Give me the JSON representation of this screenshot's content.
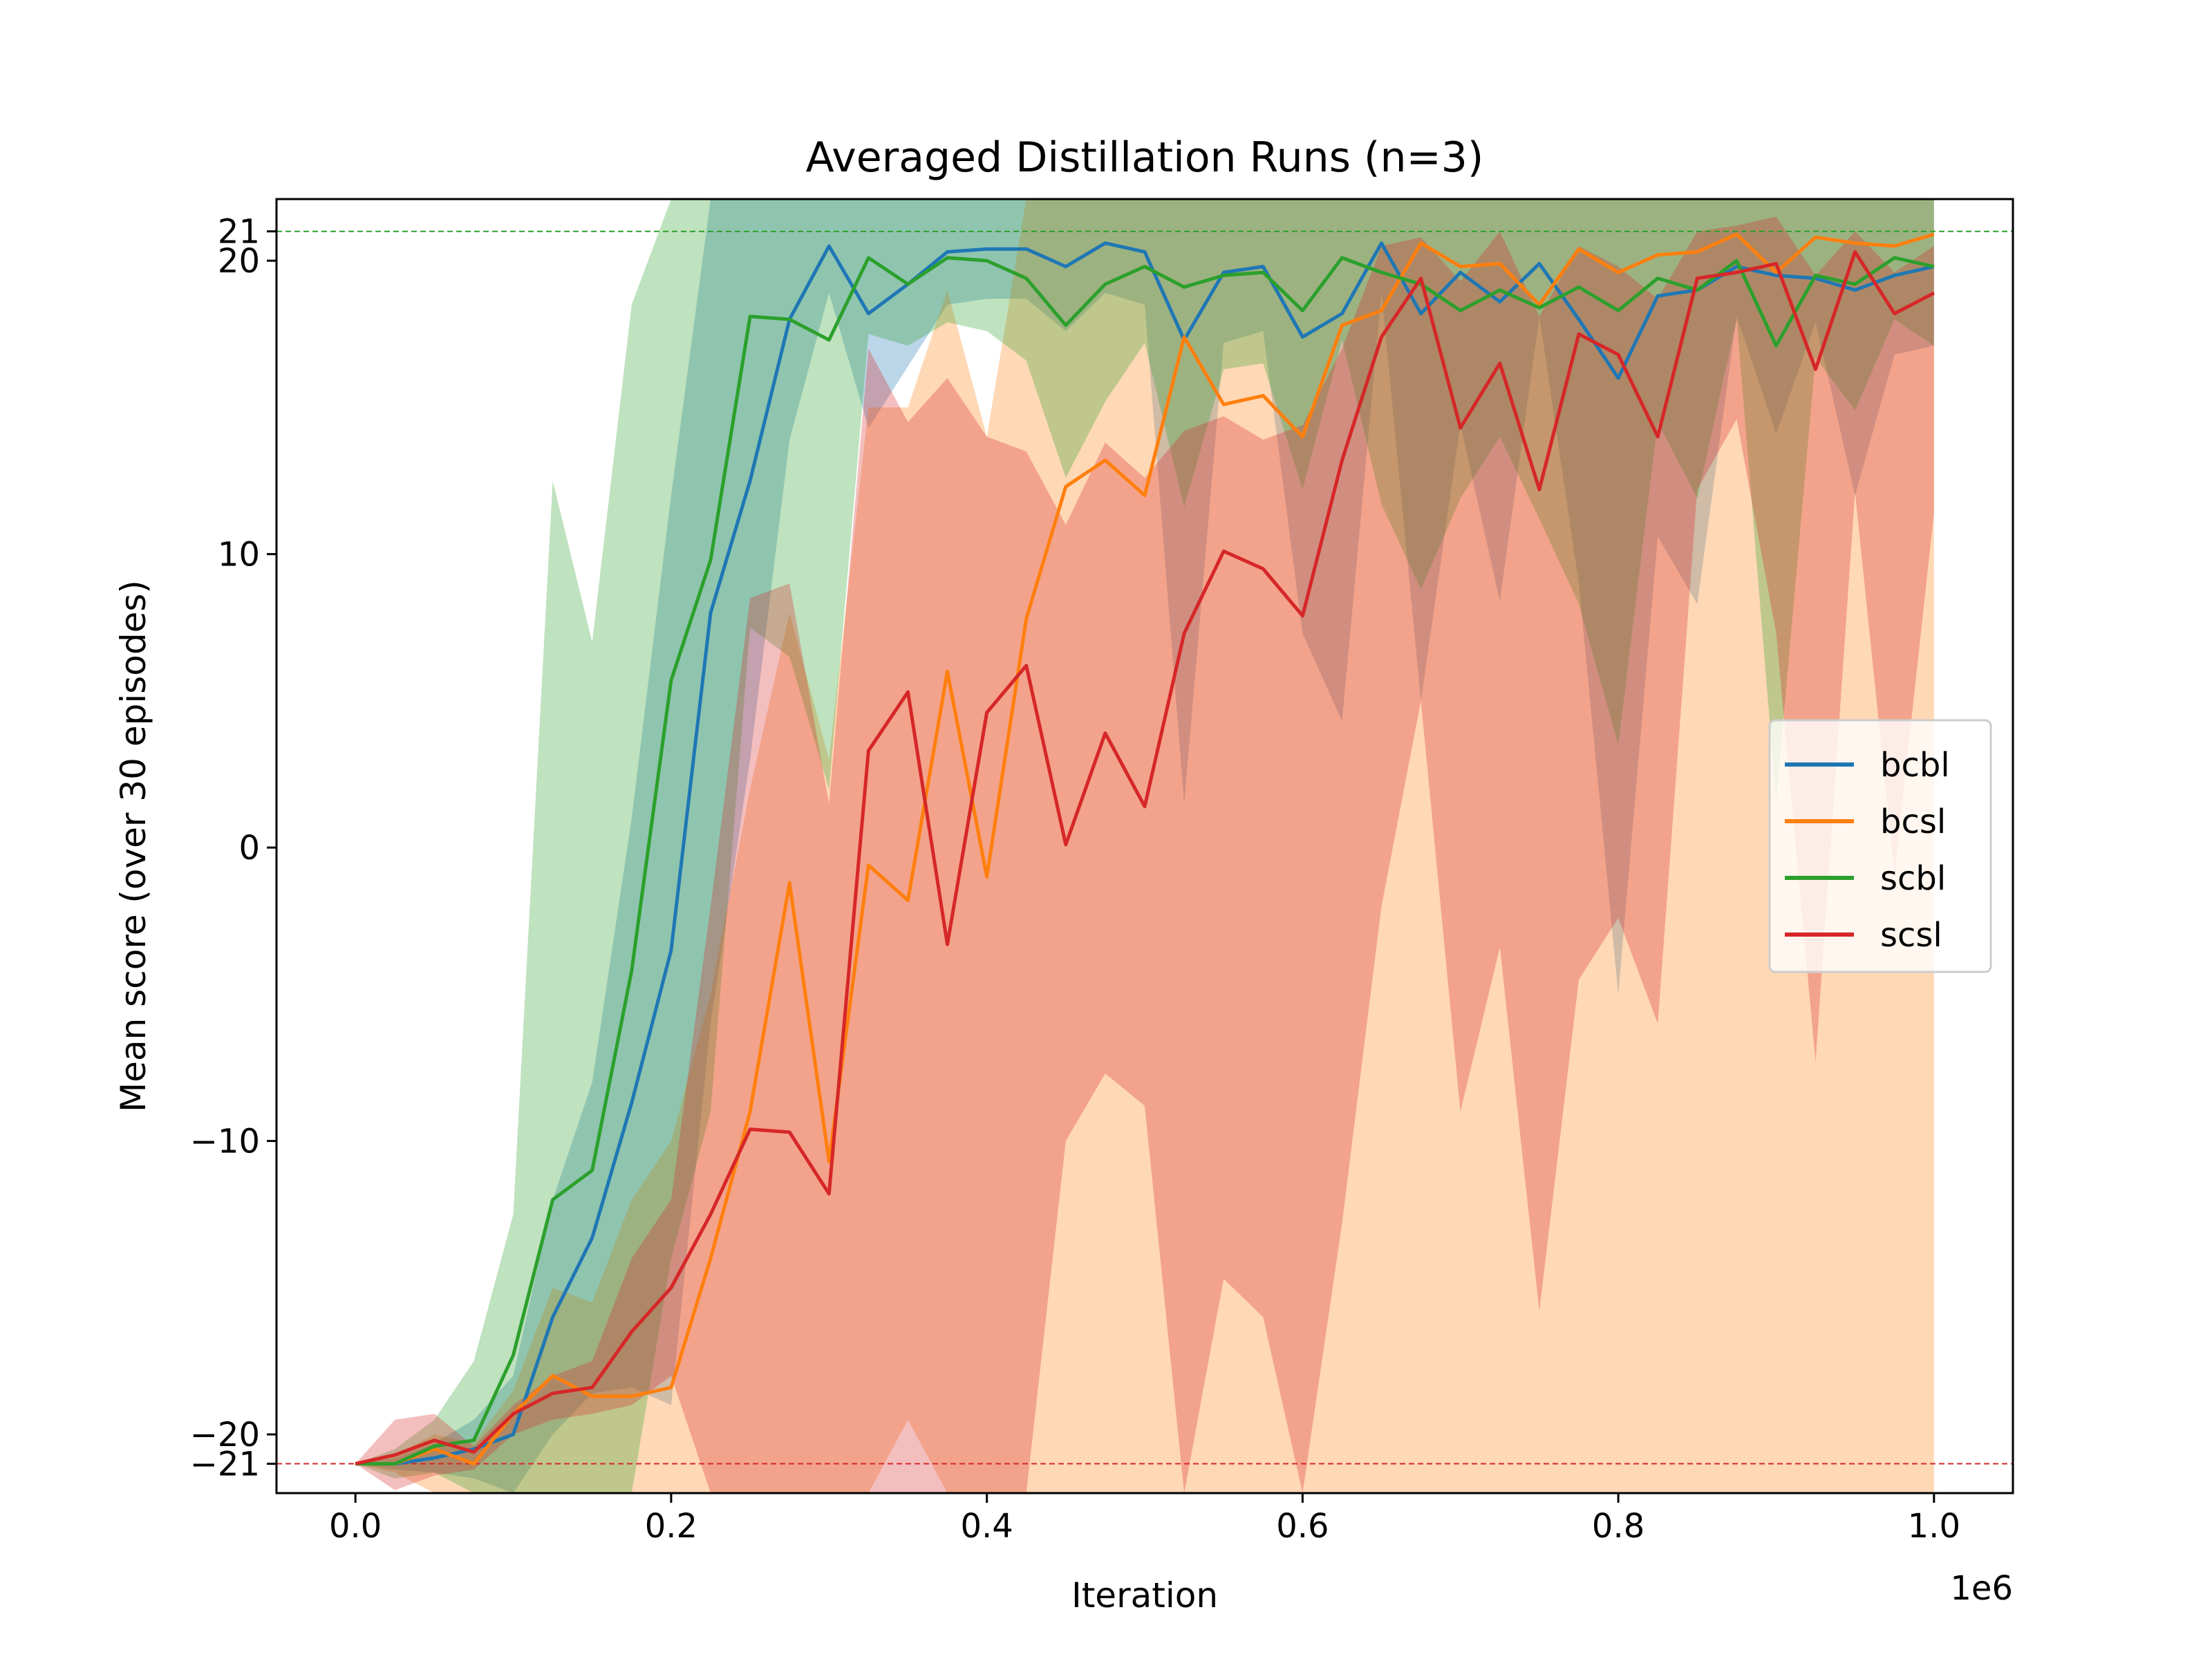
{
  "chart_data": {
    "type": "line",
    "title": "Averaged Distillation Runs (n=3)",
    "xlabel": "Iteration",
    "ylabel": "Mean score (over 30 episodes)",
    "x_offset_label": "1e6",
    "xlim": [
      -0.05,
      1.05
    ],
    "ylim": [
      -22,
      22.1
    ],
    "x_ticks": [
      0.0,
      0.2,
      0.4,
      0.6,
      0.8,
      1.0
    ],
    "x_tick_labels": [
      "0.0",
      "0.2",
      "0.4",
      "0.6",
      "0.8",
      "1.0"
    ],
    "y_ticks": [
      -21,
      -20,
      -10,
      0,
      10,
      20,
      21
    ],
    "y_tick_labels": [
      "−21",
      "−20",
      "−10",
      "0",
      "10",
      "20",
      "21"
    ],
    "legend_position": "center-right",
    "grid": false,
    "reference_lines": [
      {
        "y": 21,
        "color": "#2ca02c",
        "style": "dashed"
      },
      {
        "y": -21,
        "color": "#d62728",
        "style": "dashed"
      }
    ],
    "x": [
      0,
      0.025,
      0.05,
      0.075,
      0.1,
      0.125,
      0.15,
      0.175,
      0.2,
      0.225,
      0.25,
      0.275,
      0.3,
      0.325,
      0.35,
      0.375,
      0.4,
      0.425,
      0.45,
      0.475,
      0.5,
      0.525,
      0.55,
      0.575,
      0.6,
      0.625,
      0.65,
      0.675,
      0.7,
      0.725,
      0.75,
      0.775,
      0.8,
      0.825,
      0.85,
      0.875,
      0.9,
      0.925,
      0.95,
      0.975,
      1.0
    ],
    "series": [
      {
        "name": "bcbl",
        "color": "#1f77b4",
        "mean": [
          -21,
          -21,
          -20.8,
          -20.5,
          -20,
          -16,
          -13.3,
          -8.7,
          -3.5,
          8,
          12.5,
          18,
          20.5,
          18.2,
          19.2,
          20.3,
          20.4,
          20.4,
          19.8,
          20.6,
          20.3,
          17.3,
          19.6,
          19.8,
          17.4,
          18.2,
          20.6,
          18.2,
          19.6,
          18.6,
          19.9,
          18,
          16,
          18.8,
          19,
          19.8,
          19.5,
          19.4,
          19,
          19.5,
          19.8
        ],
        "upper": [
          -21,
          -20.8,
          -20.3,
          -19.5,
          -18,
          -12,
          -8,
          1,
          12,
          22.1,
          22.1,
          22.1,
          22.1,
          22.1,
          22.1,
          22.1,
          22.1,
          22.1,
          22.1,
          22.1,
          22.1,
          22.1,
          22.1,
          22.1,
          22.1,
          22.1,
          22.1,
          22.1,
          22.1,
          22.1,
          22.1,
          22.1,
          22.1,
          22.1,
          22.1,
          22.1,
          22.1,
          22.1,
          22.1,
          22.1,
          22.1
        ],
        "lower": [
          -21,
          -21.2,
          -21.3,
          -21.5,
          -22,
          -20,
          -18.6,
          -18.4,
          -19,
          -6,
          3,
          13.9,
          18.9,
          14.3,
          16.4,
          18.5,
          18.7,
          18.7,
          17.6,
          18.9,
          18.5,
          1.5,
          17.2,
          17.6,
          7.3,
          4.3,
          18.9,
          5,
          14.4,
          8.4,
          18.1,
          9,
          -5,
          10.6,
          8.3,
          18.1,
          14.1,
          17.9,
          12,
          16.8,
          17.1
        ]
      },
      {
        "name": "bcsl",
        "color": "#ff7f0e",
        "mean": [
          -21,
          -21,
          -20.5,
          -21,
          -19.3,
          -18,
          -18.7,
          -18.7,
          -18.4,
          -14,
          -9,
          -1.2,
          -10.7,
          -0.6,
          -1.8,
          6,
          -1,
          7.8,
          12.3,
          13.2,
          12,
          17.4,
          15.1,
          15.4,
          14,
          17.8,
          18.3,
          20.6,
          19.8,
          19.9,
          18.5,
          20.4,
          19.6,
          20.2,
          20.3,
          20.9,
          19.6,
          20.8,
          20.6,
          20.5,
          20.9
        ],
        "upper": [
          -21,
          -20.7,
          -20,
          -20.3,
          -18.5,
          -15,
          -15.5,
          -12,
          -10,
          -5,
          2,
          8,
          3,
          15,
          15,
          19,
          14,
          22.1,
          22.1,
          22.1,
          22.1,
          22.1,
          22.1,
          22.1,
          22.1,
          22.1,
          22.1,
          22.1,
          22.1,
          22.1,
          22.1,
          22.1,
          22.1,
          22.1,
          22.1,
          22.1,
          22.1,
          22.1,
          22.1,
          22.1,
          22.1
        ],
        "lower": [
          -21,
          -21.3,
          -22,
          -22,
          -22,
          -22,
          -22,
          -22,
          -22,
          -22,
          -22,
          -22,
          -22,
          -22,
          -19.5,
          -22,
          -22,
          -22,
          -22,
          -22,
          -22,
          -22,
          -22,
          -22,
          -22,
          -22,
          -22,
          -22,
          -22,
          -22,
          -22,
          -22,
          -22,
          -22,
          -22,
          -22,
          -22,
          -22,
          -22,
          -22,
          -22
        ]
      },
      {
        "name": "scbl",
        "color": "#2ca02c",
        "mean": [
          -21,
          -21,
          -20.4,
          -20.2,
          -17.3,
          -12,
          -11,
          -4.2,
          5.7,
          9.8,
          18.1,
          18,
          17.3,
          20.1,
          19.2,
          20.1,
          20,
          19.4,
          17.8,
          19.2,
          19.8,
          19.1,
          19.5,
          19.6,
          18.3,
          20.1,
          19.6,
          19.2,
          18.3,
          19,
          18.4,
          19.1,
          18.3,
          19.4,
          19,
          20,
          17.1,
          19.5,
          19.2,
          20.1,
          19.8
        ],
        "upper": [
          -21,
          -20.5,
          -19.5,
          -17.5,
          -12.5,
          12.5,
          7,
          18.5,
          22.1,
          22.1,
          22.1,
          22.1,
          22.1,
          22.1,
          22.1,
          22.1,
          22.1,
          22.1,
          22.1,
          22.1,
          22.1,
          22.1,
          22.1,
          22.1,
          22.1,
          22.1,
          22.1,
          22.1,
          22.1,
          22.1,
          22.1,
          22.1,
          22.1,
          22.1,
          22.1,
          22.1,
          22.1,
          22.1,
          22.1,
          22.1,
          22.1
        ],
        "lower": [
          -21,
          -21.5,
          -21.3,
          -22,
          -22,
          -22,
          -22,
          -22,
          -14,
          -9,
          7.5,
          6.5,
          2,
          17.5,
          17.1,
          17.9,
          17.6,
          16.6,
          12.6,
          15.2,
          17.2,
          11.6,
          16.3,
          16.5,
          12.2,
          17.3,
          11.7,
          8.8,
          11.9,
          14,
          11.2,
          8.3,
          3.5,
          14.5,
          11.9,
          18,
          1.6,
          16.7,
          14.9,
          18,
          17.1
        ]
      },
      {
        "name": "scsl",
        "color": "#d62728",
        "mean": [
          -21,
          -20.7,
          -20.2,
          -20.6,
          -19.3,
          -18.6,
          -18.4,
          -16.5,
          -15,
          -12.5,
          -9.6,
          -9.7,
          -11.8,
          3.3,
          5.3,
          -3.3,
          4.6,
          6.2,
          0.1,
          3.9,
          1.4,
          7.3,
          10.1,
          9.5,
          7.9,
          13.2,
          17.4,
          19.4,
          14.3,
          16.5,
          12.2,
          17.5,
          16.8,
          14,
          19.4,
          19.6,
          19.9,
          16.3,
          20.3,
          18.2,
          18.9
        ],
        "upper": [
          -21,
          -19.5,
          -19.3,
          -20.4,
          -19,
          -18,
          -17.5,
          -14,
          -12,
          -2,
          8.5,
          9,
          1.5,
          17,
          14.5,
          16,
          14,
          13.5,
          11,
          13.8,
          12.6,
          14.2,
          14.7,
          13.9,
          14.4,
          17,
          20.5,
          20.8,
          19.3,
          21,
          18.1,
          20.5,
          19.8,
          18.7,
          21,
          21.2,
          21.5,
          19.5,
          21,
          19.6,
          20.5
        ],
        "lower": [
          -21,
          -21.9,
          -21.4,
          -21.2,
          -20,
          -19.5,
          -19.3,
          -19,
          -18,
          -22,
          -22,
          -22,
          -22,
          -22,
          -22,
          -22,
          -22,
          -22,
          -10,
          -7.7,
          -8.8,
          -22,
          -14.7,
          -16,
          -22,
          -12.8,
          -2,
          5,
          -9,
          -3.4,
          -15.8,
          -4.5,
          -2.4,
          -6,
          12.2,
          14.6,
          7.3,
          -7.3,
          12.1,
          -0.9,
          11.4
        ]
      }
    ]
  }
}
